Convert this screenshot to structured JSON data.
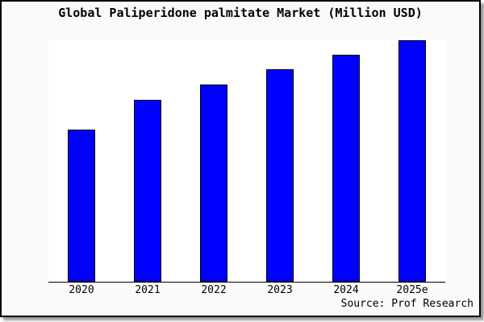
{
  "window": {
    "background_color": "#fafafa",
    "plot_background_color": "#ffffff",
    "border_color": "#000000",
    "shadow_color": "#9a9a9a"
  },
  "chart_data": {
    "type": "bar",
    "title": "Global Paliperidone palmitate Market (Million USD)",
    "categories": [
      "2020",
      "2021",
      "2022",
      "2023",
      "2024",
      "2025e"
    ],
    "values": [
      189,
      226,
      245,
      264,
      282,
      300
    ],
    "y_axis_labeled": false,
    "values_note": "y-axis has no tick labels; values are relative bar heights read from the plot",
    "xlabel": "",
    "ylabel": "",
    "ylim": [
      0,
      301
    ],
    "grid": false,
    "legend": false,
    "bar_color": "#0000ff",
    "bar_border_color": "#000000"
  },
  "source": {
    "text": "Source: Prof Research"
  }
}
